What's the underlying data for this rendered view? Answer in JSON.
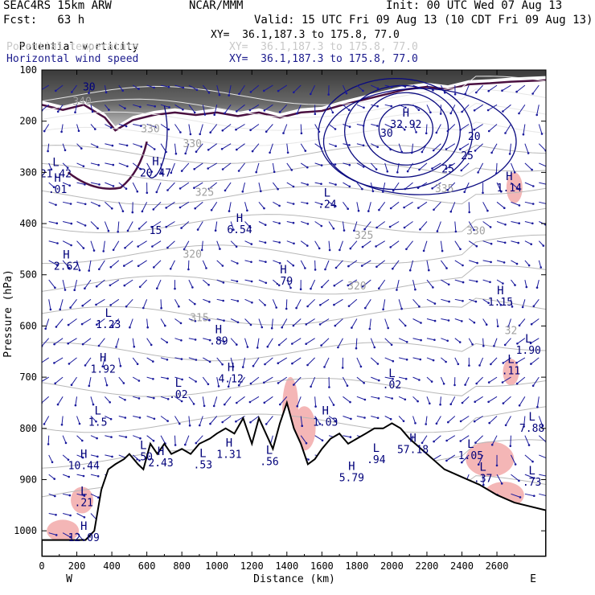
{
  "header": {
    "model": "SEAC4RS 15km ARW",
    "org": "NCAR/MMM",
    "init": "Init: 00 UTC Wed 07 Aug 13",
    "fcst": "Fcst:   63 h",
    "valid": "Valid: 15 UTC Fri 09 Aug 13 (10 CDT Fri 09 Aug 13)"
  },
  "legend": [
    {
      "label": "Potential vorticity",
      "xy": "XY=  36.1,187.3 to 175.8, 77.0",
      "color": "#000000"
    },
    {
      "label": "Potential temperature",
      "xy": "XY=  36.1,187.3 to 175.8, 77.0",
      "color": "#c8c8c8"
    },
    {
      "label": "Horizontal wind speed",
      "xy": "XY=  36.1,187.3 to 175.8, 77.0",
      "color": "#00008b"
    }
  ],
  "chart_data": {
    "type": "cross-section",
    "xlabel": "Distance (km)",
    "ylabel": "Pressure (hPa)",
    "xlim": [
      0,
      2880
    ],
    "ylim": [
      1050,
      100
    ],
    "x_ticks": [
      "0",
      "200",
      "400",
      "600",
      "800",
      "1000",
      "1200",
      "1400",
      "1600",
      "1800",
      "2000",
      "2200",
      "2400",
      "2600"
    ],
    "x_tick_values": [
      0,
      200,
      400,
      600,
      800,
      1000,
      1200,
      1400,
      1600,
      1800,
      2000,
      2200,
      2400,
      2600
    ],
    "y_ticks": [
      "100",
      "200",
      "300",
      "400",
      "500",
      "600",
      "700",
      "800",
      "900",
      "1000"
    ],
    "y_tick_values": [
      100,
      200,
      300,
      400,
      500,
      600,
      700,
      800,
      900,
      1000
    ],
    "end_labels": {
      "west": "W",
      "east": "E"
    },
    "terrain_pressure": [
      [
        0,
        1018
      ],
      [
        250,
        1018
      ],
      [
        300,
        1000
      ],
      [
        340,
        920
      ],
      [
        380,
        880
      ],
      [
        420,
        870
      ],
      [
        470,
        860
      ],
      [
        500,
        850
      ],
      [
        550,
        870
      ],
      [
        580,
        880
      ],
      [
        620,
        830
      ],
      [
        660,
        850
      ],
      [
        700,
        830
      ],
      [
        740,
        850
      ],
      [
        800,
        840
      ],
      [
        850,
        850
      ],
      [
        900,
        830
      ],
      [
        960,
        820
      ],
      [
        1000,
        810
      ],
      [
        1050,
        800
      ],
      [
        1100,
        810
      ],
      [
        1150,
        780
      ],
      [
        1200,
        830
      ],
      [
        1240,
        780
      ],
      [
        1280,
        810
      ],
      [
        1320,
        840
      ],
      [
        1360,
        790
      ],
      [
        1400,
        750
      ],
      [
        1440,
        800
      ],
      [
        1480,
        830
      ],
      [
        1520,
        870
      ],
      [
        1560,
        860
      ],
      [
        1600,
        840
      ],
      [
        1650,
        820
      ],
      [
        1700,
        810
      ],
      [
        1750,
        830
      ],
      [
        1800,
        820
      ],
      [
        1850,
        810
      ],
      [
        1900,
        800
      ],
      [
        1950,
        800
      ],
      [
        2000,
        790
      ],
      [
        2050,
        800
      ],
      [
        2100,
        820
      ],
      [
        2200,
        850
      ],
      [
        2300,
        880
      ],
      [
        2400,
        895
      ],
      [
        2500,
        910
      ],
      [
        2600,
        930
      ],
      [
        2700,
        945
      ],
      [
        2880,
        960
      ]
    ],
    "theta_labels": [
      {
        "text": "340",
        "x": 230,
        "p": 168
      },
      {
        "text": "330",
        "x": 620,
        "p": 222
      },
      {
        "text": "330",
        "x": 860,
        "p": 251
      },
      {
        "text": "325",
        "x": 930,
        "p": 346
      },
      {
        "text": "325",
        "x": 1840,
        "p": 430
      },
      {
        "text": "320",
        "x": 860,
        "p": 467
      },
      {
        "text": "320",
        "x": 1800,
        "p": 529
      },
      {
        "text": "315",
        "x": 900,
        "p": 591
      },
      {
        "text": "330",
        "x": 2480,
        "p": 421
      },
      {
        "text": "335",
        "x": 2300,
        "p": 339
      },
      {
        "text": "32",
        "x": 2680,
        "p": 616
      }
    ],
    "speed_labels": [
      {
        "text": "20",
        "x": 2470,
        "p": 237
      },
      {
        "text": "25",
        "x": 2430,
        "p": 274
      },
      {
        "text": "25",
        "x": 2320,
        "p": 300
      },
      {
        "text": "30",
        "x": 1970,
        "p": 230
      },
      {
        "text": "15",
        "x": 650,
        "p": 420
      },
      {
        "text": "30",
        "x": 270,
        "p": 140
      }
    ],
    "extrema": [
      {
        "type": "H",
        "value": "32.92",
        "x": 2080,
        "p": 213
      },
      {
        "type": "H",
        "value": "20.47",
        "x": 650,
        "p": 308
      },
      {
        "type": "L",
        "value": "21.42",
        "x": 80,
        "p": 310
      },
      {
        "type": "H",
        "value": "6.54",
        "x": 1130,
        "p": 419
      },
      {
        "type": "L",
        "value": ".24",
        "x": 1630,
        "p": 369
      },
      {
        "type": "H",
        "value": "1.14",
        "x": 2670,
        "p": 337
      },
      {
        "type": "H",
        "value": "2.62",
        "x": 140,
        "p": 490
      },
      {
        "type": "H",
        "value": ".79",
        "x": 1380,
        "p": 519
      },
      {
        "type": "H",
        "value": "1.15",
        "x": 2620,
        "p": 560
      },
      {
        "type": "L",
        "value": "1.23",
        "x": 380,
        "p": 604
      },
      {
        "type": "H",
        "value": ".89",
        "x": 1010,
        "p": 636
      },
      {
        "type": "L",
        "value": "1.90",
        "x": 2780,
        "p": 654
      },
      {
        "type": "H",
        "value": "1.92",
        "x": 350,
        "p": 691
      },
      {
        "type": "H",
        "value": "4.12",
        "x": 1080,
        "p": 710
      },
      {
        "type": "L",
        "value": ".02",
        "x": 780,
        "p": 741
      },
      {
        "type": "L",
        "value": ".02",
        "x": 2000,
        "p": 722
      },
      {
        "type": "H",
        "value": "1.03",
        "x": 1620,
        "p": 795
      },
      {
        "type": "L",
        "value": ".11",
        "x": 2680,
        "p": 694
      },
      {
        "type": "L",
        "value": "1.5",
        "x": 320,
        "p": 795
      },
      {
        "type": "L",
        "value": "7.88",
        "x": 2800,
        "p": 807
      },
      {
        "type": "H",
        "value": "10.44",
        "x": 240,
        "p": 880
      },
      {
        "type": "L",
        "value": ".50",
        "x": 580,
        "p": 862
      },
      {
        "type": "H",
        "value": "2.43",
        "x": 680,
        "p": 874
      },
      {
        "type": "L",
        "value": ".53",
        "x": 920,
        "p": 878
      },
      {
        "type": "H",
        "value": "1.31",
        "x": 1070,
        "p": 858
      },
      {
        "type": "L",
        "value": ".56",
        "x": 1300,
        "p": 872
      },
      {
        "type": "H",
        "value": "5.79",
        "x": 1770,
        "p": 903
      },
      {
        "type": "L",
        "value": ".94",
        "x": 1910,
        "p": 868
      },
      {
        "type": "H",
        "value": "57.18",
        "x": 2120,
        "p": 848
      },
      {
        "type": "L",
        "value": "1.05",
        "x": 2450,
        "p": 860
      },
      {
        "type": "L",
        "value": ".37",
        "x": 2520,
        "p": 905
      },
      {
        "type": "L",
        "value": ".73",
        "x": 2800,
        "p": 912
      },
      {
        "type": "L",
        "value": ".21",
        "x": 240,
        "p": 952
      },
      {
        "type": "H",
        "value": "12.09",
        "x": 240,
        "p": 1020
      },
      {
        "type": "H",
        "value": ".01",
        "x": 90,
        "p": 340
      }
    ]
  }
}
